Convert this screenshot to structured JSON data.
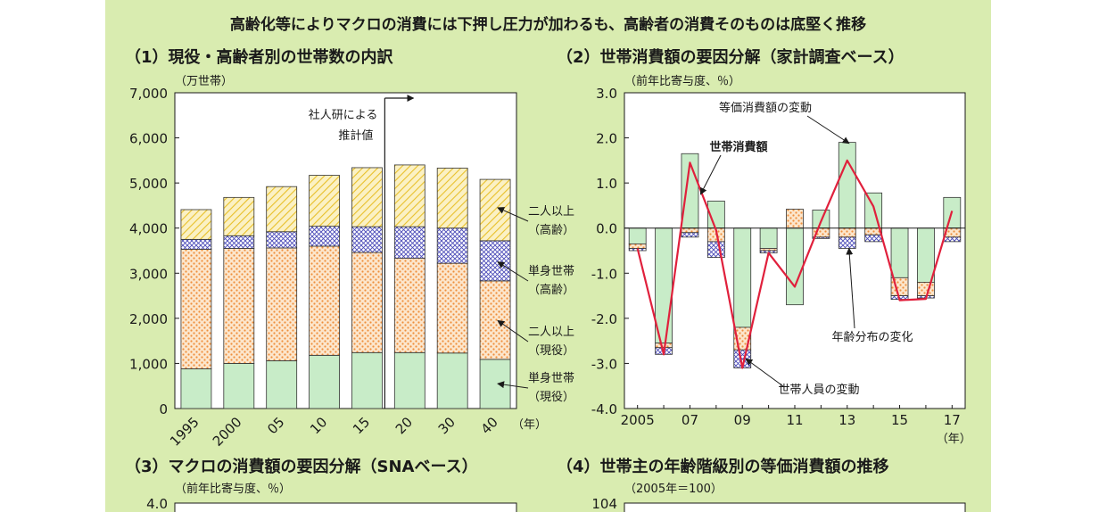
{
  "title": "高齢化等によりマクロの消費には下押し圧力が加わるも、高齢者の消費そのものは底堅く推移",
  "colors": {
    "panel_bg": "#d9ecb0",
    "green": "#c8ecc8",
    "orange": "#f5b77a",
    "blue": "#6b6bd1",
    "yellow": "#f2d45a",
    "line": "#e0203c"
  },
  "chart_data": [
    {
      "id": "1",
      "type": "bar",
      "stacked": true,
      "title": "（1）現役・高齢者別の世帯数の内訳",
      "ylabel": "（万世帯）",
      "xunit": "（年）",
      "ylim": [
        0,
        7000
      ],
      "yticks": [
        "0",
        "1,000",
        "2,000",
        "3,000",
        "4,000",
        "5,000",
        "6,000",
        "7,000"
      ],
      "ytick_values": [
        0,
        1000,
        2000,
        3000,
        4000,
        5000,
        6000,
        7000
      ],
      "categories": [
        "1995",
        "2000",
        "05",
        "10",
        "15",
        "20",
        "30",
        "40"
      ],
      "series": [
        {
          "name": "単身世帯（現役）",
          "values": [
            880,
            1000,
            1060,
            1180,
            1240,
            1240,
            1230,
            1090
          ]
        },
        {
          "name": "二人以上（現役）",
          "values": [
            2650,
            2550,
            2500,
            2420,
            2220,
            2090,
            1990,
            1740
          ]
        },
        {
          "name": "単身世帯（高齢）",
          "values": [
            220,
            280,
            360,
            440,
            570,
            700,
            780,
            890
          ]
        },
        {
          "name": "二人以上（高齢）",
          "values": [
            660,
            850,
            1000,
            1130,
            1310,
            1370,
            1330,
            1360
          ]
        }
      ],
      "legend_labels": [
        {
          "l1": "二人以上",
          "l2": "（高齢）"
        },
        {
          "l1": "単身世帯",
          "l2": "（高齢）"
        },
        {
          "l1": "二人以上",
          "l2": "（現役）"
        },
        {
          "l1": "単身世帯",
          "l2": "（現役）"
        }
      ],
      "annotation": {
        "l1": "社人研による",
        "l2": "推計値"
      }
    },
    {
      "id": "2",
      "type": "bar",
      "stacked": true,
      "title": "（2）世帯消費額の要因分解（家計調査ベース）",
      "ylabel": "（前年比寄与度、％）",
      "xunit": "（年）",
      "ylim": [
        -4,
        3
      ],
      "yticks": [
        "-4.0",
        "-3.0",
        "-2.0",
        "-1.0",
        "0.0",
        "1.0",
        "2.0",
        "3.0"
      ],
      "ytick_values": [
        -4,
        -3,
        -2,
        -1,
        0,
        1,
        2,
        3
      ],
      "years": [
        2005,
        2006,
        2007,
        2008,
        2009,
        2010,
        2011,
        2012,
        2013,
        2014,
        2015,
        2016,
        2017
      ],
      "xticks": [
        "2005",
        "07",
        "09",
        "11",
        "13",
        "15",
        "17"
      ],
      "series": [
        {
          "name": "等価消費額の変動",
          "values": [
            -0.35,
            -2.55,
            1.65,
            0.6,
            -2.2,
            -0.45,
            -1.7,
            0.4,
            1.9,
            0.78,
            -1.1,
            -1.2,
            0.68
          ]
        },
        {
          "name": "年齢分布の変化",
          "values": [
            -0.1,
            -0.1,
            -0.1,
            -0.3,
            -0.5,
            -0.05,
            0.42,
            -0.2,
            -0.2,
            -0.15,
            -0.4,
            -0.3,
            -0.2
          ]
        },
        {
          "name": "世帯人員の変動",
          "values": [
            -0.05,
            -0.15,
            -0.1,
            -0.35,
            -0.4,
            -0.05,
            0,
            -0.03,
            -0.25,
            -0.15,
            -0.08,
            -0.05,
            -0.1
          ]
        }
      ],
      "line": {
        "name": "世帯消費額",
        "values": [
          -0.45,
          -2.8,
          1.45,
          -0.05,
          -3.1,
          -0.55,
          -1.3,
          0.15,
          1.5,
          0.48,
          -1.6,
          -1.57,
          0.38
        ]
      }
    }
  ],
  "sec3_title": "（3）マクロの消費額の要因分解（SNAベース）",
  "sec3_ylabel": "（前年比寄与度、％）",
  "sec3_top_tick": "4.0",
  "sec4_title": "（4）世帯主の年齢階級別の等価消費額の推移",
  "sec4_ylabel": "（2005年＝100）",
  "sec4_top_tick": "104"
}
